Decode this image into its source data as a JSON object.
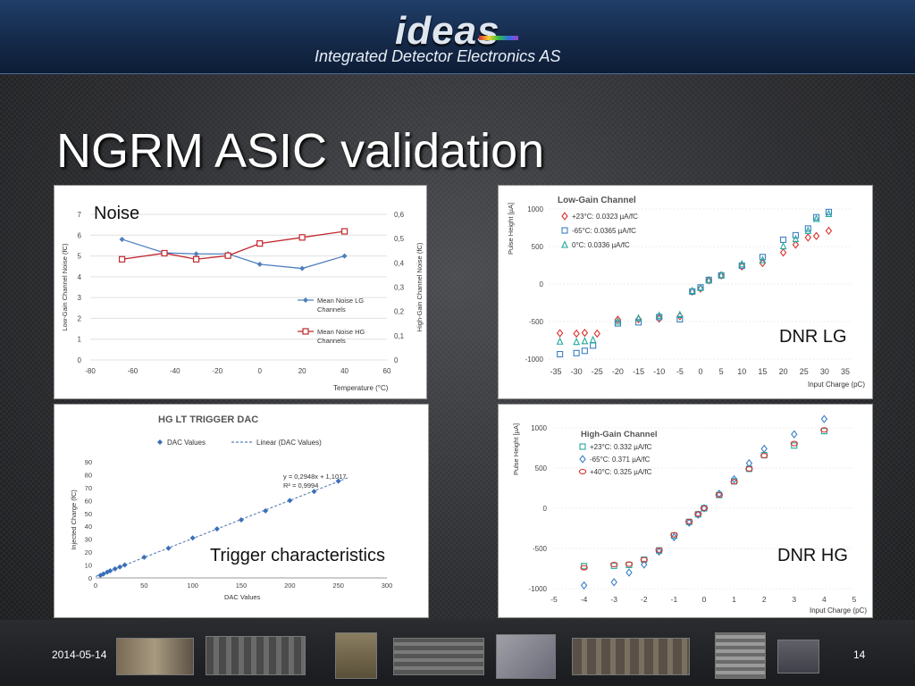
{
  "header": {
    "logo": "ideas",
    "company": "Integrated Detector Electronics AS"
  },
  "slide": {
    "title": "NGRM ASIC validation",
    "date": "2014-05-14",
    "page": "14"
  },
  "labels": {
    "noise": "Noise",
    "dnr_lg": "DNR LG",
    "trigger": "Trigger characteristics",
    "dnr_hg": "DNR HG"
  },
  "colors": {
    "lg_series": "#4f7fbf",
    "hg_series": "#c0272d",
    "red": "#d9302c",
    "blue": "#3b7fc4",
    "teal": "#23a99a",
    "dac_point": "#3a6fb8",
    "dac_fit": "#5a7fb8"
  },
  "chart_data": [
    {
      "type": "line",
      "title": "",
      "xlabel": "Temperature (°C)",
      "ylabel": "Low-Gain Channel Noise (fC)",
      "y2label": "High-Gain Channel Noise (fC)",
      "xlim": [
        -80,
        60
      ],
      "ylim": [
        0,
        7
      ],
      "y2lim": [
        0,
        0.6
      ],
      "xticks": [
        "-80",
        "-60",
        "-40",
        "-20",
        "0",
        "20",
        "40",
        "60"
      ],
      "yticks": [
        "0",
        "1",
        "2",
        "3",
        "4",
        "5",
        "6",
        "7"
      ],
      "y2ticks": [
        "0",
        "0,1",
        "0,2",
        "0,3",
        "0,4",
        "0,5",
        "0,6"
      ],
      "legend_position": "bottom-right",
      "series": [
        {
          "name": "Mean Noise LG Channels",
          "axis": "left",
          "x": [
            -65,
            -45,
            -30,
            -15,
            0,
            20,
            40
          ],
          "y": [
            5.8,
            5.15,
            5.1,
            5.1,
            4.6,
            4.4,
            5.0
          ]
        },
        {
          "name": "Mean Noise HG Channels",
          "axis": "right",
          "x": [
            -65,
            -45,
            -30,
            -15,
            0,
            20,
            40
          ],
          "y": [
            0.415,
            0.44,
            0.415,
            0.43,
            0.48,
            0.505,
            0.53
          ]
        }
      ]
    },
    {
      "type": "scatter",
      "title": "Low-Gain Channel",
      "xlabel": "Input Charge (pC)",
      "ylabel": "Pulse Height [µA]",
      "xlim": [
        -35,
        35
      ],
      "ylim": [
        -1000,
        1000
      ],
      "xticks": [
        "-35",
        "-30",
        "-25",
        "-20",
        "-15",
        "-10",
        "-5",
        "0",
        "5",
        "10",
        "15",
        "20",
        "25",
        "30",
        "35"
      ],
      "yticks": [
        "-1000",
        "-500",
        "0",
        "500",
        "1000"
      ],
      "legend_position": "top-left",
      "series": [
        {
          "name": "+23°C: 0.0323 µA/fC",
          "marker": "diamond",
          "x": [
            -34,
            -30,
            -28,
            -25,
            -20,
            -15,
            -10,
            -5,
            -2,
            0,
            2,
            5,
            10,
            15,
            20,
            23,
            26,
            28,
            31
          ],
          "y": [
            -655,
            -660,
            -650,
            -660,
            -475,
            -470,
            -460,
            -430,
            -100,
            -60,
            50,
            115,
            235,
            280,
            420,
            525,
            620,
            640,
            710
          ]
        },
        {
          "name": "-65°C: 0.0365 µA/fC",
          "marker": "square",
          "x": [
            -34,
            -30,
            -28,
            -26,
            -20,
            -15,
            -10,
            -5,
            -2,
            0,
            2,
            5,
            10,
            15,
            20,
            23,
            26,
            28,
            31
          ],
          "y": [
            -935,
            -920,
            -890,
            -820,
            -525,
            -510,
            -440,
            -470,
            -100,
            -45,
            55,
            115,
            245,
            360,
            590,
            650,
            740,
            890,
            960
          ]
        },
        {
          "name": "0°C: 0.0336 µA/fC",
          "marker": "triangle",
          "x": [
            -34,
            -30,
            -28,
            -26,
            -20,
            -15,
            -10,
            -5,
            -2,
            0,
            2,
            5,
            10,
            15,
            20,
            23,
            26,
            28,
            31
          ],
          "y": [
            -765,
            -770,
            -760,
            -745,
            -500,
            -455,
            -420,
            -410,
            -90,
            -50,
            50,
            120,
            265,
            320,
            505,
            600,
            710,
            870,
            935
          ]
        }
      ]
    },
    {
      "type": "scatter",
      "title": "HG LT TRIGGER DAC",
      "xlabel": "DAC Values",
      "ylabel": "Injected Charge (fC)",
      "xlim": [
        0,
        300
      ],
      "ylim": [
        0,
        90
      ],
      "xticks": [
        "0",
        "50",
        "100",
        "150",
        "200",
        "250",
        "300"
      ],
      "yticks": [
        "0",
        "10",
        "20",
        "30",
        "40",
        "50",
        "60",
        "70",
        "80",
        "90"
      ],
      "legend_position": "top",
      "legend": [
        "DAC Values",
        "Linear (DAC Values)"
      ],
      "annotation": [
        "y = 0,2948x + 1,1017",
        "R² = 0,9994"
      ],
      "series": [
        {
          "name": "DAC Values",
          "x": [
            5,
            8,
            12,
            15,
            20,
            25,
            30,
            50,
            75,
            100,
            125,
            150,
            175,
            200,
            225,
            250
          ],
          "y": [
            2,
            3,
            4.5,
            5.5,
            7,
            8.5,
            10,
            16,
            23,
            31,
            38,
            45,
            52,
            60,
            67,
            75
          ]
        }
      ]
    },
    {
      "type": "scatter",
      "title": "High-Gain Channel",
      "xlabel": "Input Charge (pC)",
      "ylabel": "Pulse Height [µA]",
      "xlim": [
        -5,
        5
      ],
      "ylim": [
        -1000,
        1000
      ],
      "xticks": [
        "-5",
        "-4",
        "-3",
        "-2",
        "-1",
        "0",
        "1",
        "2",
        "3",
        "4",
        "5"
      ],
      "yticks": [
        "-1000",
        "-500",
        "0",
        "500",
        "1000"
      ],
      "legend_position": "top-left",
      "series": [
        {
          "name": "+23°C: 0.332 µA/fC",
          "marker": "square",
          "x": [
            -4,
            -3,
            -2.5,
            -2,
            -1.5,
            -1,
            -0.5,
            -0.2,
            0,
            0.5,
            1,
            1.5,
            2,
            3,
            4
          ],
          "y": [
            -720,
            -715,
            -705,
            -640,
            -525,
            -340,
            -170,
            -75,
            0,
            165,
            335,
            490,
            660,
            780,
            960
          ]
        },
        {
          "name": "-65°C: 0.371 µA/fC",
          "marker": "diamond",
          "x": [
            -4,
            -3,
            -2.5,
            -2,
            -1.5,
            -1,
            -0.5,
            -0.2,
            0,
            0.5,
            1,
            1.5,
            2,
            3,
            4
          ],
          "y": [
            -960,
            -920,
            -800,
            -700,
            -540,
            -360,
            -180,
            -80,
            0,
            180,
            360,
            560,
            740,
            920,
            1110
          ]
        },
        {
          "name": "+40°C: 0.325 µA/fC",
          "marker": "circle",
          "x": [
            -4,
            -3,
            -2.5,
            -2,
            -1.5,
            -1,
            -0.5,
            -0.2,
            0,
            0.5,
            1,
            1.5,
            2,
            3,
            4
          ],
          "y": [
            -740,
            -700,
            -695,
            -640,
            -520,
            -330,
            -165,
            -70,
            0,
            165,
            330,
            490,
            655,
            805,
            975
          ]
        }
      ]
    }
  ]
}
